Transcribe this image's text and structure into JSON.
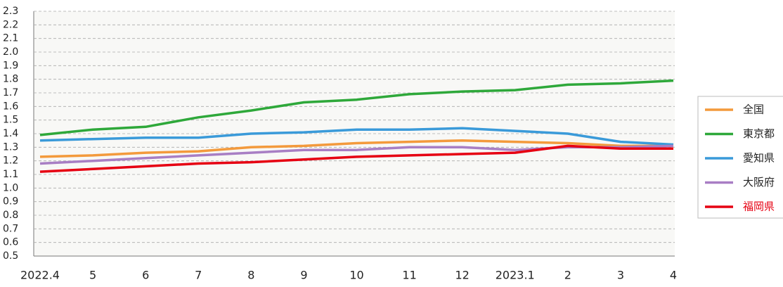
{
  "chart_data": {
    "type": "line",
    "categories": [
      "2022.4",
      "5",
      "6",
      "7",
      "8",
      "9",
      "10",
      "11",
      "12",
      "2023.1",
      "2",
      "3",
      "4"
    ],
    "series": [
      {
        "name": "全国",
        "color": "#f39a3c",
        "values": [
          1.23,
          1.24,
          1.26,
          1.27,
          1.3,
          1.31,
          1.33,
          1.34,
          1.35,
          1.34,
          1.33,
          1.31,
          1.31
        ]
      },
      {
        "name": "東京都",
        "color": "#2ea83a",
        "values": [
          1.39,
          1.43,
          1.45,
          1.52,
          1.57,
          1.63,
          1.65,
          1.69,
          1.71,
          1.72,
          1.76,
          1.77,
          1.79
        ]
      },
      {
        "name": "愛知県",
        "color": "#3a9ad9",
        "values": [
          1.35,
          1.36,
          1.37,
          1.37,
          1.4,
          1.41,
          1.43,
          1.43,
          1.44,
          1.42,
          1.4,
          1.34,
          1.32
        ]
      },
      {
        "name": "大阪府",
        "color": "#a87ec4",
        "values": [
          1.18,
          1.2,
          1.22,
          1.24,
          1.26,
          1.28,
          1.28,
          1.3,
          1.3,
          1.28,
          1.3,
          1.3,
          1.31
        ]
      },
      {
        "name": "福岡県",
        "color": "#e60012",
        "legend_text_color": "#e60012",
        "values": [
          1.12,
          1.14,
          1.16,
          1.18,
          1.19,
          1.21,
          1.23,
          1.24,
          1.25,
          1.26,
          1.31,
          1.29,
          1.29
        ]
      }
    ],
    "ylim": [
      0.5,
      2.3
    ],
    "yticks": [
      0.5,
      0.6,
      0.7,
      0.8,
      0.9,
      {
        "value": 1,
        "label": "1.0"
      },
      1.1,
      1.2,
      1.3,
      1.4,
      1.5,
      1.6,
      1.7,
      1.8,
      1.9,
      {
        "value": 2,
        "label": "2.0"
      },
      2.1,
      2.2,
      2.3
    ],
    "grid": true,
    "legend": "right"
  }
}
